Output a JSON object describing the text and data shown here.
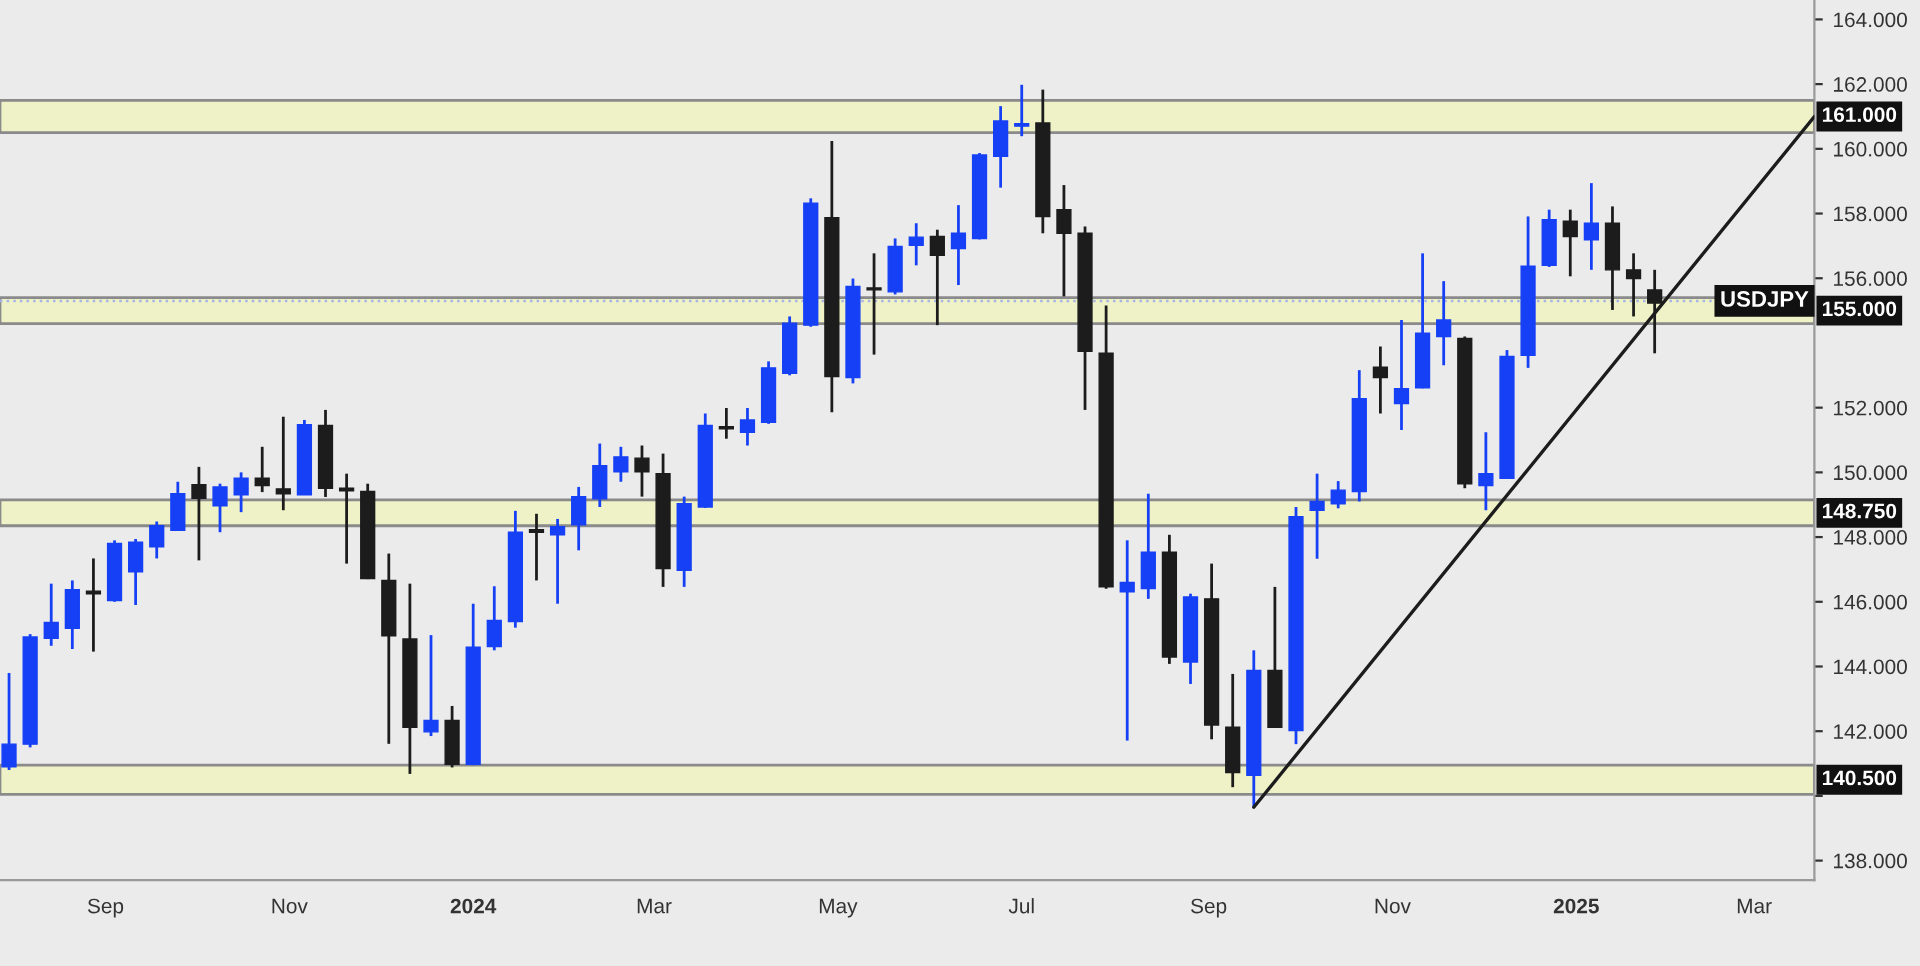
{
  "chart_data": {
    "type": "candlestick",
    "x": [
      "2023-07-31",
      "2023-08-07",
      "2023-08-14",
      "2023-08-21",
      "2023-08-28",
      "2023-09-04",
      "2023-09-11",
      "2023-09-18",
      "2023-09-25",
      "2023-10-02",
      "2023-10-09",
      "2023-10-16",
      "2023-10-23",
      "2023-10-30",
      "2023-11-06",
      "2023-11-13",
      "2023-11-20",
      "2023-11-27",
      "2023-12-04",
      "2023-12-11",
      "2023-12-18",
      "2023-12-25",
      "2024-01-01",
      "2024-01-08",
      "2024-01-15",
      "2024-01-22",
      "2024-01-29",
      "2024-02-05",
      "2024-02-12",
      "2024-02-19",
      "2024-02-26",
      "2024-03-04",
      "2024-03-11",
      "2024-03-18",
      "2024-03-25",
      "2024-04-01",
      "2024-04-08",
      "2024-04-15",
      "2024-04-22",
      "2024-04-29",
      "2024-05-06",
      "2024-05-13",
      "2024-05-20",
      "2024-05-27",
      "2024-06-03",
      "2024-06-10",
      "2024-06-17",
      "2024-06-24",
      "2024-07-01",
      "2024-07-08",
      "2024-07-15",
      "2024-07-22",
      "2024-07-29",
      "2024-08-05",
      "2024-08-12",
      "2024-08-19",
      "2024-08-26",
      "2024-09-02",
      "2024-09-09",
      "2024-09-16",
      "2024-09-23",
      "2024-09-30",
      "2024-10-07",
      "2024-10-14",
      "2024-10-21",
      "2024-10-28",
      "2024-11-04",
      "2024-11-11",
      "2024-11-18",
      "2024-11-25",
      "2024-12-02",
      "2024-12-09",
      "2024-12-16",
      "2024-12-23",
      "2024-12-30",
      "2025-01-06",
      "2025-01-13",
      "2025-01-20",
      "2025-01-27"
    ],
    "ohlc": [
      [
        140.9,
        143.8,
        140.8,
        141.6
      ],
      [
        141.6,
        145.0,
        141.5,
        144.91
      ],
      [
        144.87,
        146.56,
        144.64,
        145.36
      ],
      [
        145.18,
        146.66,
        144.54,
        146.37
      ],
      [
        146.33,
        147.34,
        144.46,
        146.25
      ],
      [
        146.04,
        147.9,
        146.0,
        147.8
      ],
      [
        146.93,
        147.94,
        145.9,
        147.84
      ],
      [
        147.7,
        148.48,
        147.34,
        148.35
      ],
      [
        148.21,
        149.71,
        148.2,
        149.34
      ],
      [
        149.62,
        150.17,
        147.28,
        149.2
      ],
      [
        148.97,
        149.65,
        148.15,
        149.55
      ],
      [
        149.31,
        150.0,
        148.77,
        149.82
      ],
      [
        149.82,
        150.79,
        149.39,
        149.59
      ],
      [
        149.49,
        151.72,
        148.83,
        149.34
      ],
      [
        149.31,
        151.62,
        149.3,
        151.47
      ],
      [
        151.45,
        151.93,
        149.24,
        149.51
      ],
      [
        149.51,
        149.96,
        147.18,
        149.43
      ],
      [
        149.41,
        149.65,
        146.7,
        146.72
      ],
      [
        146.66,
        147.49,
        141.61,
        144.95
      ],
      [
        144.85,
        146.56,
        140.68,
        142.12
      ],
      [
        141.98,
        144.97,
        141.85,
        142.33
      ],
      [
        142.33,
        142.78,
        140.88,
        140.98
      ],
      [
        140.98,
        145.94,
        140.95,
        144.6
      ],
      [
        144.62,
        146.48,
        144.5,
        145.42
      ],
      [
        145.39,
        148.81,
        145.2,
        148.15
      ],
      [
        148.23,
        148.72,
        146.66,
        148.15
      ],
      [
        148.07,
        148.56,
        145.94,
        148.32
      ],
      [
        148.38,
        149.55,
        147.59,
        149.25
      ],
      [
        149.18,
        150.89,
        148.93,
        150.21
      ],
      [
        150.02,
        150.79,
        149.71,
        150.48
      ],
      [
        150.44,
        150.83,
        149.25,
        150.02
      ],
      [
        149.96,
        150.58,
        146.46,
        147.03
      ],
      [
        146.97,
        149.25,
        146.46,
        149.03
      ],
      [
        148.93,
        151.82,
        148.9,
        151.45
      ],
      [
        151.41,
        151.99,
        151.04,
        151.35
      ],
      [
        151.24,
        151.99,
        150.83,
        151.62
      ],
      [
        151.55,
        153.43,
        151.5,
        153.23
      ],
      [
        153.06,
        154.82,
        153.0,
        154.61
      ],
      [
        154.55,
        158.47,
        154.5,
        158.32
      ],
      [
        157.87,
        160.24,
        151.86,
        152.96
      ],
      [
        152.93,
        155.99,
        152.75,
        155.75
      ],
      [
        155.7,
        156.77,
        153.64,
        155.64
      ],
      [
        155.58,
        157.23,
        155.5,
        156.98
      ],
      [
        157.02,
        157.7,
        156.4,
        157.27
      ],
      [
        157.29,
        157.5,
        154.55,
        156.71
      ],
      [
        156.92,
        158.26,
        155.79,
        157.39
      ],
      [
        157.23,
        159.87,
        157.2,
        159.81
      ],
      [
        159.77,
        161.32,
        158.8,
        160.86
      ],
      [
        160.7,
        161.98,
        160.39,
        160.78
      ],
      [
        160.8,
        161.83,
        157.39,
        157.91
      ],
      [
        158.12,
        158.88,
        155.44,
        157.39
      ],
      [
        157.39,
        157.6,
        151.93,
        153.74
      ],
      [
        153.68,
        155.16,
        146.4,
        146.46
      ],
      [
        146.31,
        147.9,
        141.71,
        146.6
      ],
      [
        146.41,
        149.34,
        146.09,
        147.53
      ],
      [
        147.53,
        148.07,
        144.08,
        144.29
      ],
      [
        144.14,
        146.25,
        143.46,
        146.15
      ],
      [
        146.09,
        147.18,
        141.75,
        142.19
      ],
      [
        142.12,
        143.77,
        140.27,
        140.72
      ],
      [
        140.64,
        144.5,
        139.65,
        143.88
      ],
      [
        143.88,
        146.46,
        142.1,
        142.12
      ],
      [
        142.02,
        148.93,
        141.6,
        148.63
      ],
      [
        148.83,
        149.96,
        147.33,
        149.1
      ],
      [
        149.03,
        149.73,
        148.89,
        149.45
      ],
      [
        149.41,
        153.16,
        149.1,
        152.28
      ],
      [
        153.25,
        153.89,
        151.82,
        152.93
      ],
      [
        152.13,
        154.71,
        151.31,
        152.59
      ],
      [
        152.61,
        156.77,
        152.6,
        154.3
      ],
      [
        154.2,
        155.91,
        153.31,
        154.71
      ],
      [
        154.14,
        154.2,
        149.51,
        149.65
      ],
      [
        149.59,
        151.24,
        148.83,
        149.96
      ],
      [
        149.82,
        153.78,
        149.8,
        153.58
      ],
      [
        153.62,
        157.91,
        153.23,
        156.37
      ],
      [
        156.4,
        158.12,
        156.35,
        157.81
      ],
      [
        157.76,
        158.12,
        156.06,
        157.29
      ],
      [
        157.19,
        158.94,
        156.26,
        157.7
      ],
      [
        157.7,
        158.22,
        155.02,
        156.26
      ],
      [
        156.26,
        156.77,
        154.82,
        155.99
      ],
      [
        155.64,
        156.26,
        153.68,
        155.23
      ]
    ],
    "colors": [
      "#1640f5",
      "#1640f5",
      "#1640f5",
      "#1640f5",
      "#1c1c1c",
      "#1640f5",
      "#1640f5",
      "#1640f5",
      "#1640f5",
      "#1c1c1c",
      "#1640f5",
      "#1640f5",
      "#1c1c1c",
      "#1c1c1c",
      "#1640f5",
      "#1c1c1c",
      "#1c1c1c",
      "#1c1c1c",
      "#1c1c1c",
      "#1c1c1c",
      "#1640f5",
      "#1c1c1c",
      "#1640f5",
      "#1640f5",
      "#1640f5",
      "#1c1c1c",
      "#1640f5",
      "#1640f5",
      "#1640f5",
      "#1640f5",
      "#1c1c1c",
      "#1c1c1c",
      "#1640f5",
      "#1640f5",
      "#1c1c1c",
      "#1640f5",
      "#1640f5",
      "#1640f5",
      "#1640f5",
      "#1c1c1c",
      "#1640f5",
      "#1c1c1c",
      "#1640f5",
      "#1640f5",
      "#1c1c1c",
      "#1640f5",
      "#1640f5",
      "#1640f5",
      "#1640f5",
      "#1c1c1c",
      "#1c1c1c",
      "#1c1c1c",
      "#1c1c1c",
      "#1640f5",
      "#1640f5",
      "#1c1c1c",
      "#1640f5",
      "#1c1c1c",
      "#1c1c1c",
      "#1640f5",
      "#1c1c1c",
      "#1640f5",
      "#1640f5",
      "#1640f5",
      "#1640f5",
      "#1c1c1c",
      "#1640f5",
      "#1640f5",
      "#1640f5",
      "#1c1c1c",
      "#1640f5",
      "#1640f5",
      "#1640f5",
      "#1640f5",
      "#1c1c1c",
      "#1640f5",
      "#1c1c1c",
      "#1c1c1c",
      "#1c1c1c"
    ],
    "series": [
      {
        "type": "line",
        "color": "#1c1c1c",
        "x": [
          "2024-09-16",
          "2025-03-21"
        ],
        "values": [
          139.65,
          161.0
        ]
      }
    ],
    "bands": [
      {
        "axis": "y",
        "from": 160.5,
        "to": 161.5,
        "label": "161.000",
        "color": "#eef2c6"
      },
      {
        "axis": "y",
        "from": 154.6,
        "to": 155.4,
        "label": "155.000",
        "color": "#eef2c6"
      },
      {
        "axis": "y",
        "from": 148.35,
        "to": 149.15,
        "label": "148.750",
        "color": "#eef2c6"
      },
      {
        "axis": "y",
        "from": 140.05,
        "to": 140.95,
        "label": "140.500",
        "color": "#eef2c6"
      }
    ],
    "ref_lines": [
      {
        "axis": "y",
        "value": 155.3,
        "label": "USDJPY",
        "color": "#a8b4e6",
        "line_style": "dotted"
      }
    ],
    "xlim": [
      "2023-07-28",
      "2025-03-21"
    ],
    "xticks": [
      {
        "value": "2023-09-01",
        "label": "Sep"
      },
      {
        "value": "2023-11-01",
        "label": "Nov"
      },
      {
        "value": "2024-01-01",
        "label": "2024"
      },
      {
        "value": "2024-03-01",
        "label": "Mar"
      },
      {
        "value": "2024-05-01",
        "label": "May"
      },
      {
        "value": "2024-07-01",
        "label": "Jul"
      },
      {
        "value": "2024-09-01",
        "label": "Sep"
      },
      {
        "value": "2024-11-01",
        "label": "Nov"
      },
      {
        "value": "2025-01-01",
        "label": "2025"
      },
      {
        "value": "2025-03-01",
        "label": "Mar"
      }
    ],
    "ylim": [
      137.4,
      164.6
    ],
    "yticks": [
      {
        "value": 138,
        "label": "138.000"
      },
      {
        "value": 140,
        "label": null
      },
      {
        "value": 142,
        "label": "142.000"
      },
      {
        "value": 144,
        "label": "144.000"
      },
      {
        "value": 146,
        "label": "146.000"
      },
      {
        "value": 148,
        "label": "148.000"
      },
      {
        "value": 150,
        "label": "150.000"
      },
      {
        "value": 152,
        "label": "152.000"
      },
      {
        "value": 156,
        "label": "156.000"
      },
      {
        "value": 158,
        "label": "158.000"
      },
      {
        "value": 160,
        "label": "160.000"
      },
      {
        "value": 162,
        "label": "162.000"
      },
      {
        "value": 164,
        "label": "164.000"
      }
    ],
    "grid": false,
    "legend": false
  }
}
